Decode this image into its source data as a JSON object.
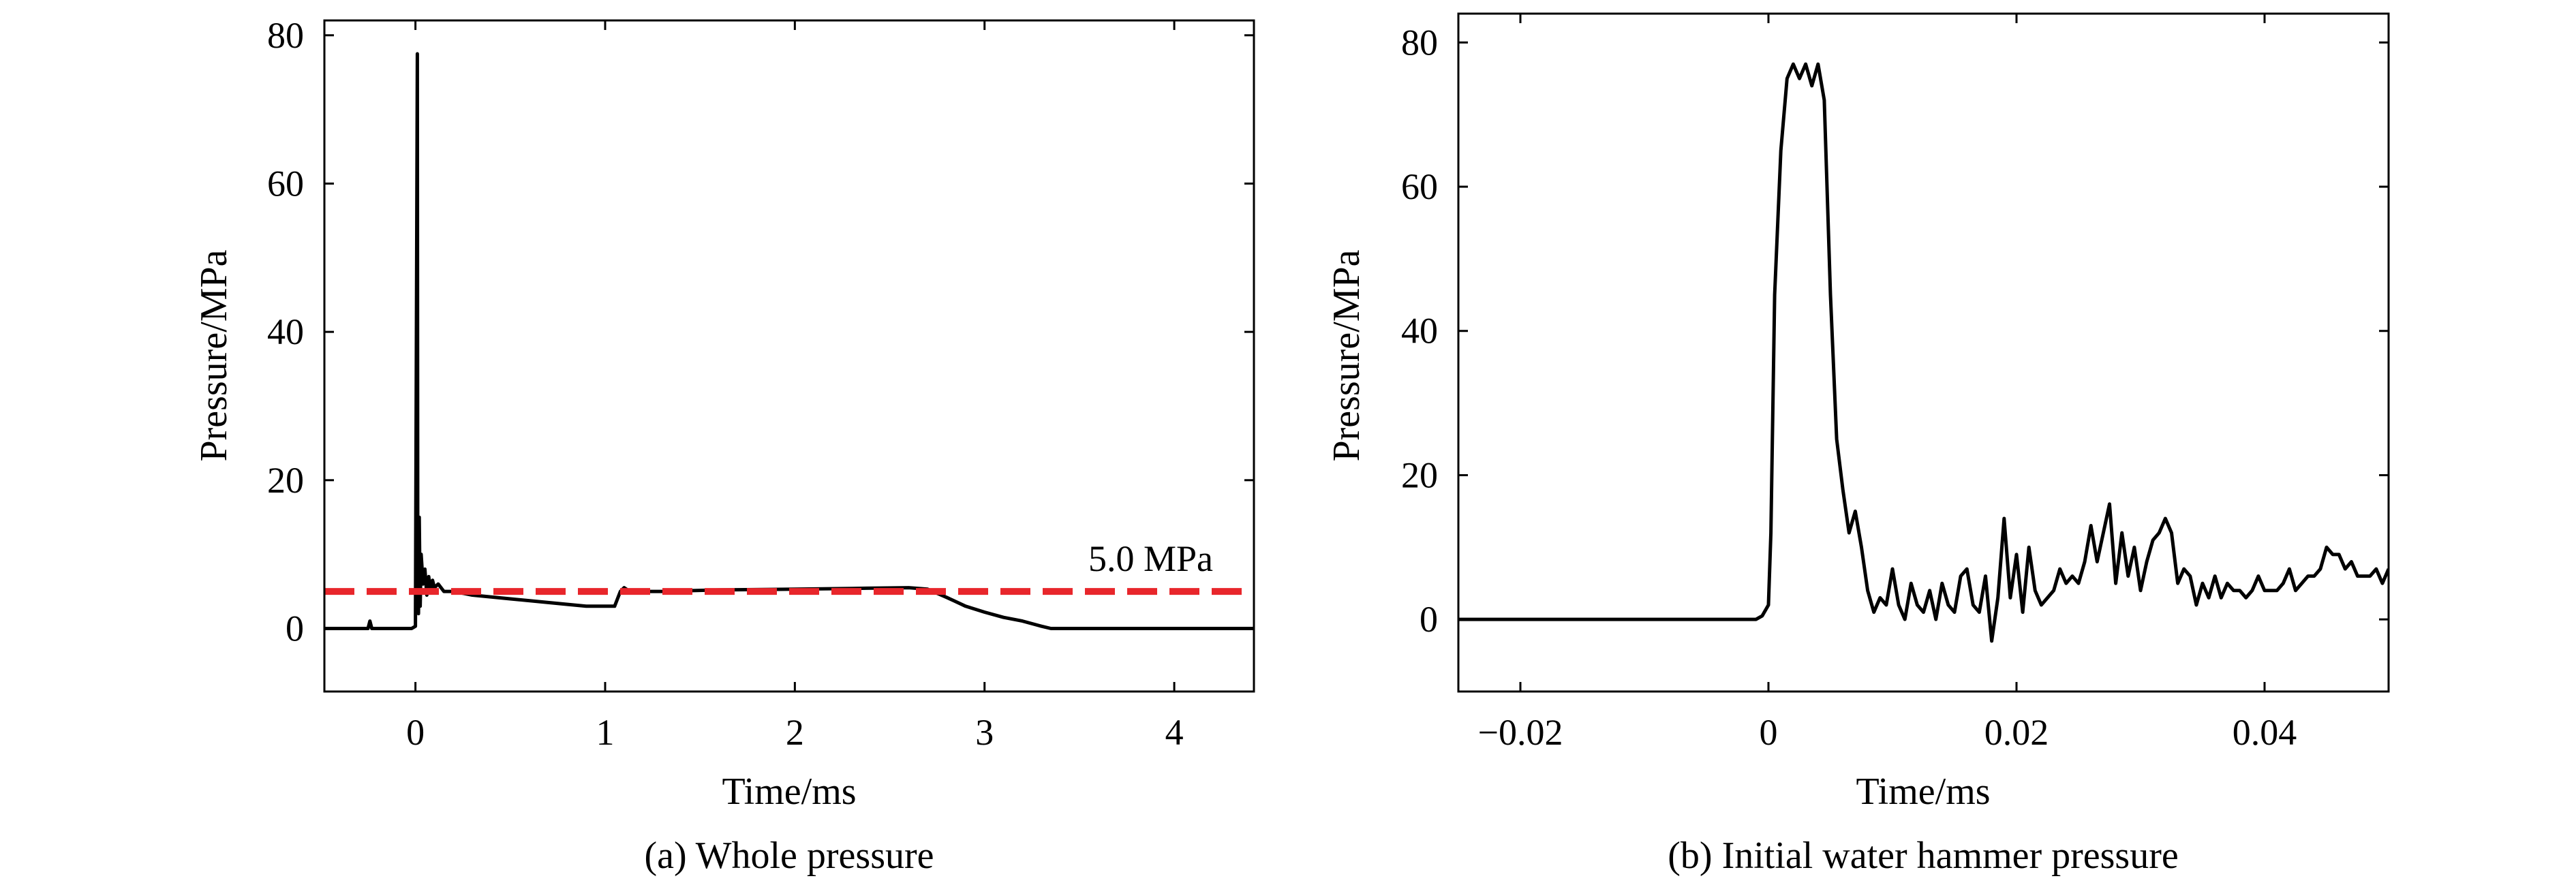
{
  "chart_data": [
    {
      "type": "line",
      "caption": "(a) Whole pressure",
      "xlabel": "Time/ms",
      "ylabel": "Pressure/MPa",
      "xlim": [
        -0.48,
        4.42
      ],
      "ylim": [
        -8.5,
        82
      ],
      "xticks": [
        0,
        1,
        2,
        3,
        4
      ],
      "yticks": [
        0,
        20,
        40,
        60,
        80
      ],
      "xtick_labels": [
        "0",
        "1",
        "2",
        "3",
        "4"
      ],
      "ytick_labels": [
        "0",
        "20",
        "40",
        "60",
        "80"
      ],
      "grid": false,
      "reference_line": {
        "y": 5.0,
        "label": "5.0 MPa",
        "color": "#e8262b",
        "style": "dashed"
      },
      "series": [
        {
          "color": "#000000",
          "x": [
            -0.48,
            -0.25,
            -0.24,
            -0.23,
            -0.02,
            0.0,
            0.01,
            0.012,
            0.016,
            0.02,
            0.025,
            0.03,
            0.04,
            0.05,
            0.06,
            0.07,
            0.08,
            0.09,
            0.1,
            0.12,
            0.15,
            0.2,
            0.3,
            0.5,
            0.7,
            0.9,
            1.05,
            1.08,
            1.1,
            1.13,
            1.3,
            1.6,
            2.0,
            2.3,
            2.6,
            2.7,
            2.8,
            2.9,
            3.0,
            3.1,
            3.2,
            3.3,
            3.35,
            3.4,
            3.7,
            4.0,
            4.42
          ],
          "y": [
            0,
            0,
            1,
            0,
            0,
            0.3,
            77.5,
            10,
            2,
            15,
            3,
            10,
            6,
            8,
            4.5,
            7,
            5,
            6.5,
            5.5,
            6,
            5,
            5,
            4.5,
            4,
            3.5,
            3,
            3,
            5,
            5.5,
            5,
            5,
            5.2,
            5.3,
            5.4,
            5.5,
            5.3,
            4.2,
            3,
            2.2,
            1.5,
            1,
            0.3,
            0,
            0,
            0,
            0,
            0
          ]
        }
      ]
    },
    {
      "type": "line",
      "caption": "(b) Initial water hammer pressure",
      "xlabel": "Time/ms",
      "ylabel": "Pressure/MPa",
      "xlim": [
        -0.025,
        0.05
      ],
      "ylim": [
        -10,
        84
      ],
      "xticks": [
        -0.02,
        0,
        0.02,
        0.04
      ],
      "yticks": [
        0,
        20,
        40,
        60,
        80
      ],
      "xtick_labels": [
        "−0.02",
        "0",
        "0.02",
        "0.04"
      ],
      "ytick_labels": [
        "0",
        "20",
        "40",
        "60",
        "80"
      ],
      "grid": false,
      "series": [
        {
          "color": "#000000",
          "x": [
            -0.025,
            -0.001,
            -0.0005,
            0.0,
            0.0002,
            0.0005,
            0.001,
            0.0015,
            0.002,
            0.0025,
            0.003,
            0.0035,
            0.004,
            0.0045,
            0.005,
            0.0055,
            0.006,
            0.0065,
            0.007,
            0.0075,
            0.008,
            0.0085,
            0.009,
            0.0095,
            0.01,
            0.0105,
            0.011,
            0.0115,
            0.012,
            0.0125,
            0.013,
            0.0135,
            0.014,
            0.0145,
            0.015,
            0.0155,
            0.016,
            0.0165,
            0.017,
            0.0175,
            0.018,
            0.0185,
            0.019,
            0.0195,
            0.02,
            0.0205,
            0.021,
            0.0215,
            0.022,
            0.0225,
            0.023,
            0.0235,
            0.024,
            0.0245,
            0.025,
            0.0255,
            0.026,
            0.0265,
            0.027,
            0.0275,
            0.028,
            0.0285,
            0.029,
            0.0295,
            0.03,
            0.0305,
            0.031,
            0.0315,
            0.032,
            0.0325,
            0.033,
            0.0335,
            0.034,
            0.0345,
            0.035,
            0.0355,
            0.036,
            0.0365,
            0.037,
            0.0375,
            0.038,
            0.0385,
            0.039,
            0.0395,
            0.04,
            0.0405,
            0.041,
            0.0415,
            0.042,
            0.0425,
            0.043,
            0.0435,
            0.044,
            0.0445,
            0.045,
            0.0455,
            0.046,
            0.0465,
            0.047,
            0.0475,
            0.048,
            0.0485,
            0.049,
            0.0495,
            0.05
          ],
          "y": [
            0,
            0,
            0.5,
            2,
            12,
            45,
            65,
            75,
            77,
            75,
            77,
            74,
            77,
            72,
            45,
            25,
            18,
            12,
            15,
            10,
            4,
            1,
            3,
            2,
            7,
            2,
            0,
            5,
            2,
            1,
            4,
            0,
            5,
            2,
            1,
            6,
            7,
            2,
            1,
            6,
            -3,
            3,
            14,
            3,
            9,
            1,
            10,
            4,
            2,
            3,
            4,
            7,
            5,
            6,
            5,
            8,
            13,
            8,
            12,
            16,
            5,
            12,
            6,
            10,
            4,
            8,
            11,
            12,
            14,
            12,
            5,
            7,
            6,
            2,
            5,
            3,
            6,
            3,
            5,
            4,
            4,
            3,
            4,
            6,
            4,
            4,
            4,
            5,
            7,
            4,
            5,
            6,
            6,
            7,
            10,
            9,
            9,
            7,
            8,
            6,
            6,
            6,
            7,
            5,
            7
          ]
        }
      ]
    }
  ]
}
